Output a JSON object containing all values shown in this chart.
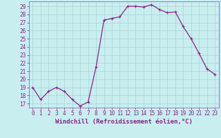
{
  "x": [
    0,
    1,
    2,
    3,
    4,
    5,
    6,
    7,
    8,
    9,
    10,
    11,
    12,
    13,
    14,
    15,
    16,
    17,
    18,
    19,
    20,
    21,
    22,
    23
  ],
  "y": [
    19,
    17.5,
    18.5,
    19,
    18.5,
    17.5,
    16.7,
    17.2,
    21.5,
    27.3,
    27.5,
    27.7,
    29.0,
    29.0,
    28.9,
    29.2,
    28.6,
    28.2,
    28.3,
    26.5,
    25.0,
    23.2,
    21.3,
    20.6
  ],
  "line_color": "#882288",
  "marker": "+",
  "marker_size": 3,
  "marker_lw": 0.8,
  "bg_color": "#c8eef0",
  "grid_color": "#a0ccc8",
  "xlabel": "Windchill (Refroidissement éolien,°C)",
  "ylim": [
    16.5,
    29.6
  ],
  "xlim": [
    -0.5,
    23.5
  ],
  "yticks": [
    17,
    18,
    19,
    20,
    21,
    22,
    23,
    24,
    25,
    26,
    27,
    28,
    29
  ],
  "xticks": [
    0,
    1,
    2,
    3,
    4,
    5,
    6,
    7,
    8,
    9,
    10,
    11,
    12,
    13,
    14,
    15,
    16,
    17,
    18,
    19,
    20,
    21,
    22,
    23
  ],
  "tick_fontsize": 5.5,
  "xlabel_fontsize": 6.5,
  "text_color": "#882288",
  "spine_color": "#9944aa",
  "line_width": 0.9
}
